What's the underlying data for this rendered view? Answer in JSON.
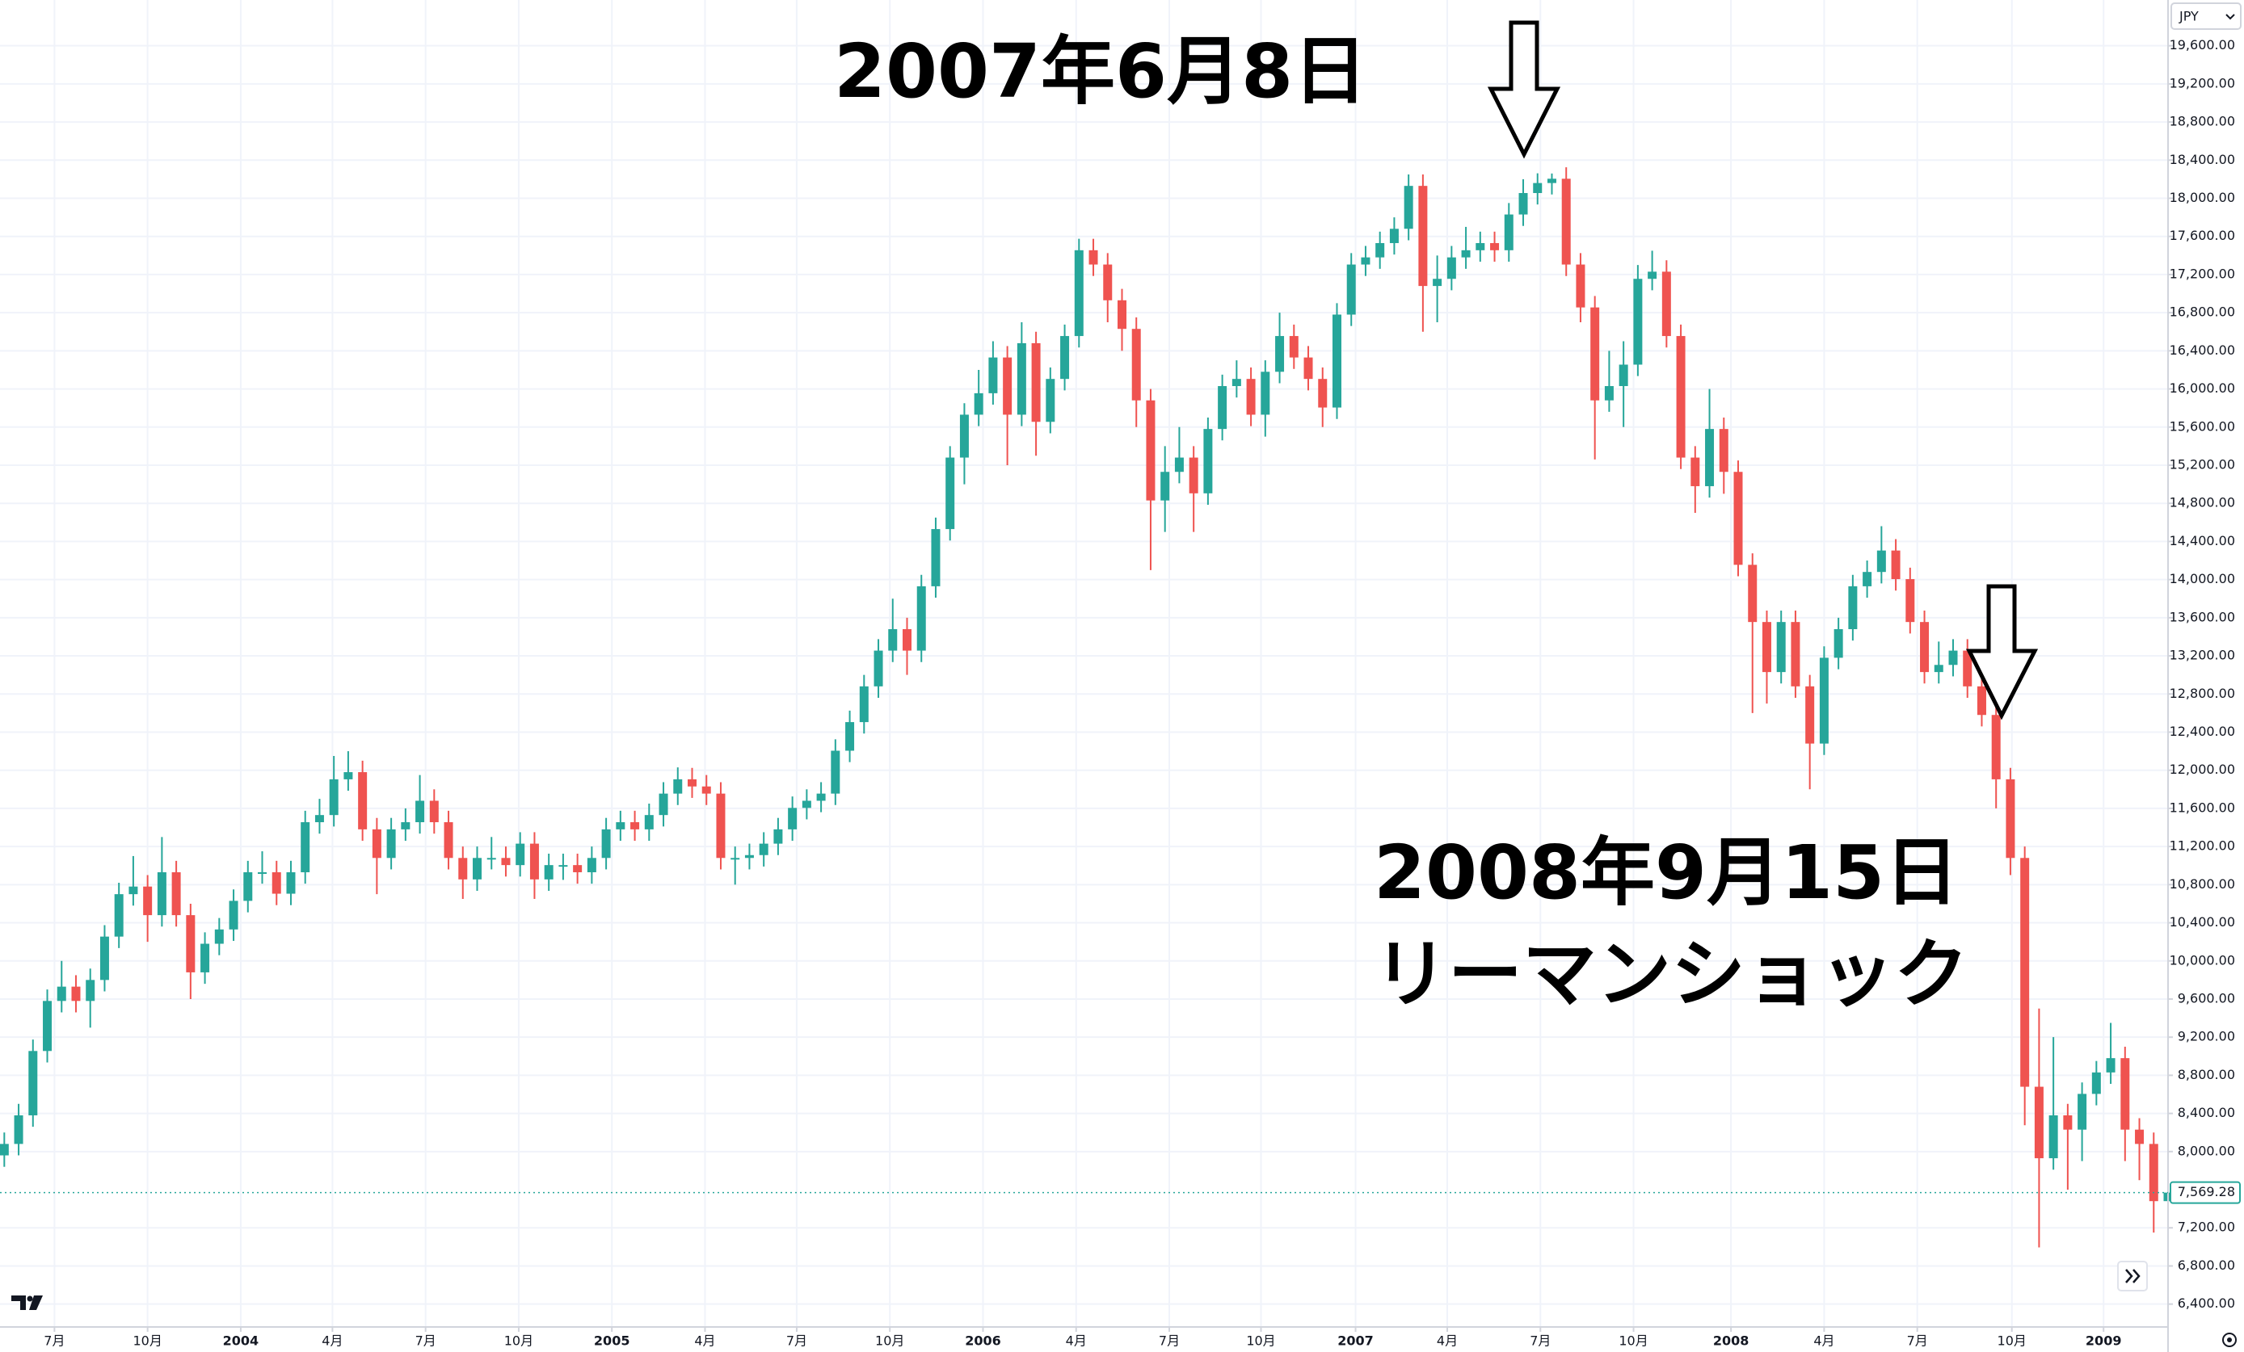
{
  "chart_data": {
    "type": "candlestick",
    "currency": "JPY",
    "annotations": [
      "2007年6月8日",
      "2008年9月15日",
      "リーマンショック"
    ],
    "up_color": "#26a69a",
    "down_color": "#ef5350",
    "grid": true,
    "open": [
      7960,
      8080,
      8380,
      9055,
      9580,
      9730,
      9580,
      9800,
      10255,
      10700,
      10780,
      10480,
      10930,
      10480,
      9880,
      10180,
      10330,
      10630,
      10930,
      10930,
      10705,
      10930,
      11455,
      11530,
      11905,
      11980,
      11380,
      11080,
      11380,
      11455,
      11680,
      11455,
      11080,
      10855,
      11080,
      11080,
      11005,
      11230,
      10855,
      11005,
      11005,
      10930,
      11080,
      11380,
      11455,
      11380,
      11530,
      11755,
      11905,
      11830,
      11755,
      11080,
      11080,
      11110,
      11230,
      11380,
      11605,
      11680,
      11755,
      12205,
      12505,
      12880,
      13255,
      13480,
      13255,
      13930,
      14530,
      15280,
      15730,
      15955,
      16330,
      15730,
      16480,
      15655,
      16105,
      16555,
      17455,
      17305,
      16930,
      16630,
      15880,
      14830,
      15130,
      15280,
      14905,
      15580,
      16030,
      16105,
      15730,
      16180,
      16555,
      16330,
      16105,
      15805,
      16780,
      17305,
      17380,
      17530,
      17680,
      18130,
      17080,
      17155,
      17380,
      17455,
      17530,
      17455,
      17830,
      18055,
      18160,
      18205,
      17305,
      16855,
      15880,
      16030,
      16255,
      17155,
      17230,
      16555,
      15280,
      14980,
      15580,
      15130,
      14155,
      13555,
      13030,
      13555,
      12880,
      12280,
      13180,
      13480,
      13930,
      14080,
      14305,
      14005,
      13555,
      13030,
      13105,
      13255,
      12880,
      12580,
      11905,
      11080,
      8680,
      7930,
      8380,
      8230,
      8605,
      8830,
      8980,
      8230,
      8080,
      7480
    ],
    "high": [
      8200,
      8500,
      9175,
      9700,
      10000,
      9850,
      9920,
      10375,
      10820,
      11100,
      10900,
      11300,
      11050,
      10600,
      10300,
      10450,
      10750,
      11050,
      11150,
      11050,
      11050,
      11575,
      11700,
      12150,
      12200,
      12100,
      11500,
      11500,
      11600,
      11950,
      11800,
      11575,
      11200,
      11200,
      11300,
      11200,
      11350,
      11350,
      11125,
      11125,
      11125,
      11200,
      11500,
      11575,
      11575,
      11650,
      11875,
      12030,
      12025,
      11950,
      11875,
      11200,
      11230,
      11350,
      11500,
      11725,
      11800,
      11875,
      12325,
      12625,
      13000,
      13375,
      13800,
      13600,
      14050,
      14650,
      15400,
      15850,
      16200,
      16500,
      16450,
      16700,
      16600,
      16225,
      16675,
      17575,
      17575,
      17425,
      17050,
      16750,
      16000,
      15400,
      15600,
      15400,
      15700,
      16150,
      16300,
      16225,
      16300,
      16800,
      16675,
      16450,
      16225,
      16900,
      17425,
      17500,
      17650,
      17800,
      18250,
      18250,
      17400,
      17500,
      17700,
      17650,
      17650,
      17950,
      18200,
      18262,
      18260,
      18325,
      17425,
      16975,
      16400,
      16500,
      17300,
      17450,
      17350,
      16675,
      15400,
      16000,
      15700,
      15250,
      14275,
      13675,
      13675,
      13675,
      13000,
      13300,
      13600,
      14050,
      14200,
      14560,
      14425,
      14125,
      13675,
      13350,
      13375,
      13375,
      13000,
      12700,
      12025,
      11200,
      9500,
      9200,
      8500,
      8725,
      8950,
      9350,
      9100,
      8350,
      8200,
      7700
    ],
    "low": [
      7840,
      7960,
      8260,
      8935,
      9460,
      9460,
      9300,
      9680,
      10135,
      10580,
      10200,
      10360,
      10360,
      9600,
      9760,
      10060,
      10210,
      10510,
      10810,
      10585,
      10585,
      10810,
      11335,
      11410,
      11785,
      11260,
      10700,
      10960,
      11260,
      11335,
      11335,
      10960,
      10650,
      10735,
      10960,
      10885,
      10885,
      10650,
      10735,
      10850,
      10810,
      10810,
      10960,
      11260,
      11260,
      11260,
      11410,
      11635,
      11710,
      11635,
      10960,
      10800,
      10960,
      10990,
      11110,
      11260,
      11485,
      11560,
      11635,
      12085,
      12385,
      12760,
      13135,
      13000,
      13135,
      13810,
      14410,
      15000,
      15610,
      15835,
      15200,
      15610,
      15300,
      15535,
      15985,
      16435,
      17185,
      16700,
      16400,
      15600,
      14100,
      14500,
      15010,
      14500,
      14785,
      15460,
      15910,
      15610,
      15500,
      16060,
      16210,
      15985,
      15600,
      15685,
      16660,
      17185,
      17260,
      17410,
      17560,
      16600,
      16700,
      17035,
      17260,
      17335,
      17335,
      17335,
      17710,
      17935,
      18040,
      17185,
      16700,
      15260,
      15760,
      15600,
      16135,
      17035,
      16435,
      15160,
      14700,
      14860,
      14900,
      14035,
      12600,
      12700,
      12910,
      12760,
      11800,
      12160,
      13060,
      13360,
      13810,
      13960,
      13885,
      13435,
      12910,
      12910,
      12985,
      12760,
      12460,
      11600,
      10900,
      8276,
      6995,
      7810,
      7600,
      7900,
      8485,
      8710,
      7900,
      7700,
      7150,
      7050
    ],
    "close": [
      8080,
      8380,
      9055,
      9580,
      9730,
      9580,
      9800,
      10255,
      10700,
      10780,
      10480,
      10930,
      10480,
      9880,
      10180,
      10330,
      10630,
      10930,
      10930,
      10705,
      10930,
      11455,
      11530,
      11905,
      11980,
      11380,
      11080,
      11380,
      11455,
      11680,
      11455,
      11080,
      10855,
      11080,
      11080,
      11005,
      11230,
      10855,
      11005,
      11005,
      10930,
      11080,
      11380,
      11455,
      11380,
      11530,
      11755,
      11905,
      11830,
      11755,
      11080,
      11080,
      11110,
      11230,
      11380,
      11605,
      11680,
      11755,
      12205,
      12505,
      12880,
      13255,
      13480,
      13255,
      13930,
      14530,
      15280,
      15730,
      15955,
      16330,
      15730,
      16480,
      15655,
      16105,
      16555,
      17455,
      17305,
      16930,
      16630,
      15880,
      14830,
      15130,
      15280,
      14905,
      15580,
      16030,
      16105,
      15730,
      16180,
      16555,
      16330,
      16105,
      15805,
      16780,
      17305,
      17380,
      17530,
      17680,
      18130,
      17080,
      17155,
      17380,
      17455,
      17530,
      17455,
      17830,
      18055,
      18160,
      18205,
      17305,
      16855,
      15880,
      16030,
      16255,
      17155,
      17230,
      16555,
      15280,
      14980,
      15580,
      15130,
      14155,
      13555,
      13030,
      13555,
      12880,
      12280,
      13180,
      13480,
      13930,
      14080,
      14305,
      14005,
      13555,
      13030,
      13105,
      13255,
      12880,
      12580,
      11905,
      11080,
      8680,
      7930,
      8380,
      8230,
      8605,
      8830,
      8980,
      8230,
      8080,
      7480,
      7569.28
    ],
    "last_price": {
      "value": 7569.28,
      "label": "7,569.28"
    },
    "xlim": [
      -0.3,
      151.0
    ],
    "xticks": [
      {
        "value": 3.5,
        "label": "7月"
      },
      {
        "value": 10,
        "label": "10月"
      },
      {
        "value": 16.5,
        "label": "2004"
      },
      {
        "value": 22.9,
        "label": "4月"
      },
      {
        "value": 29.4,
        "label": "7月"
      },
      {
        "value": 35.9,
        "label": "10月"
      },
      {
        "value": 42.4,
        "label": "2005"
      },
      {
        "value": 48.9,
        "label": "4月"
      },
      {
        "value": 55.3,
        "label": "7月"
      },
      {
        "value": 61.8,
        "label": "10月"
      },
      {
        "value": 68.3,
        "label": "2006"
      },
      {
        "value": 74.8,
        "label": "4月"
      },
      {
        "value": 81.3,
        "label": "7月"
      },
      {
        "value": 87.7,
        "label": "10月"
      },
      {
        "value": 94.3,
        "label": "2007"
      },
      {
        "value": 100.7,
        "label": "4月"
      },
      {
        "value": 107.2,
        "label": "7月"
      },
      {
        "value": 113.7,
        "label": "10月"
      },
      {
        "value": 120.5,
        "label": "2008"
      },
      {
        "value": 127,
        "label": "4月"
      },
      {
        "value": 133.5,
        "label": "7月"
      },
      {
        "value": 140.1,
        "label": "10月"
      },
      {
        "value": 146.5,
        "label": "2009"
      }
    ],
    "ylim": [
      6160,
      20080
    ],
    "yticks": [
      {
        "value": 6400,
        "label": "6,400.00"
      },
      {
        "value": 6800,
        "label": "6,800.00"
      },
      {
        "value": 7200,
        "label": "7,200.00"
      },
      {
        "value": 8000,
        "label": "8,000.00"
      },
      {
        "value": 8400,
        "label": "8,400.00"
      },
      {
        "value": 8800,
        "label": "8,800.00"
      },
      {
        "value": 9200,
        "label": "9,200.00"
      },
      {
        "value": 9600,
        "label": "9,600.00"
      },
      {
        "value": 10000,
        "label": "10,000.00"
      },
      {
        "value": 10400,
        "label": "10,400.00"
      },
      {
        "value": 10800,
        "label": "10,800.00"
      },
      {
        "value": 11200,
        "label": "11,200.00"
      },
      {
        "value": 11600,
        "label": "11,600.00"
      },
      {
        "value": 12000,
        "label": "12,000.00"
      },
      {
        "value": 12400,
        "label": "12,400.00"
      },
      {
        "value": 12800,
        "label": "12,800.00"
      },
      {
        "value": 13200,
        "label": "13,200.00"
      },
      {
        "value": 13600,
        "label": "13,600.00"
      },
      {
        "value": 14000,
        "label": "14,000.00"
      },
      {
        "value": 14400,
        "label": "14,400.00"
      },
      {
        "value": 14800,
        "label": "14,800.00"
      },
      {
        "value": 15200,
        "label": "15,200.00"
      },
      {
        "value": 15600,
        "label": "15,600.00"
      },
      {
        "value": 16000,
        "label": "16,000.00"
      },
      {
        "value": 16400,
        "label": "16,400.00"
      },
      {
        "value": 16800,
        "label": "16,800.00"
      },
      {
        "value": 17200,
        "label": "17,200.00"
      },
      {
        "value": 17600,
        "label": "17,600.00"
      },
      {
        "value": 18000,
        "label": "18,000.00"
      },
      {
        "value": 18400,
        "label": "18,400.00"
      },
      {
        "value": 18800,
        "label": "18,800.00"
      },
      {
        "value": 19200,
        "label": "19,200.00"
      },
      {
        "value": 19600,
        "label": "19,600.00"
      }
    ]
  }
}
